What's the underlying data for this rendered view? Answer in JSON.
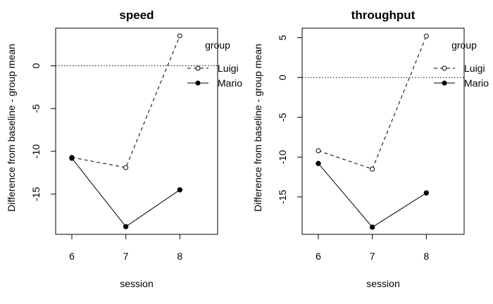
{
  "chart_data": [
    {
      "type": "line",
      "title": "speed",
      "xlabel": "session",
      "ylabel": "Difference from baseline - group mean",
      "categories": [
        6,
        7,
        8
      ],
      "xlim": [
        5.7,
        8.7
      ],
      "ylim": [
        -19.7,
        4.4
      ],
      "yticks": [
        0,
        -5,
        -10,
        -15
      ],
      "reference_line": 0,
      "legend": {
        "title": "group",
        "placement": "top-right"
      },
      "series": [
        {
          "name": "Luigi",
          "values": [
            -10.7,
            -11.9,
            3.5
          ],
          "marker": "open-circle",
          "line": "dashed"
        },
        {
          "name": "Mario",
          "values": [
            -10.8,
            -18.8,
            -14.5
          ],
          "marker": "filled-circle",
          "line": "solid"
        }
      ]
    },
    {
      "type": "line",
      "title": "throughput",
      "xlabel": "session",
      "ylabel": "Difference from baseline - group mean",
      "categories": [
        6,
        7,
        8
      ],
      "xlim": [
        5.7,
        8.7
      ],
      "ylim": [
        -19.7,
        6.2
      ],
      "yticks": [
        5,
        0,
        -5,
        -10,
        -15
      ],
      "reference_line": 0,
      "legend": {
        "title": "group",
        "placement": "top-right"
      },
      "series": [
        {
          "name": "Luigi",
          "values": [
            -9.2,
            -11.5,
            5.2
          ],
          "marker": "open-circle",
          "line": "dashed"
        },
        {
          "name": "Mario",
          "values": [
            -10.8,
            -18.8,
            -14.5
          ],
          "marker": "filled-circle",
          "line": "solid"
        }
      ]
    }
  ]
}
